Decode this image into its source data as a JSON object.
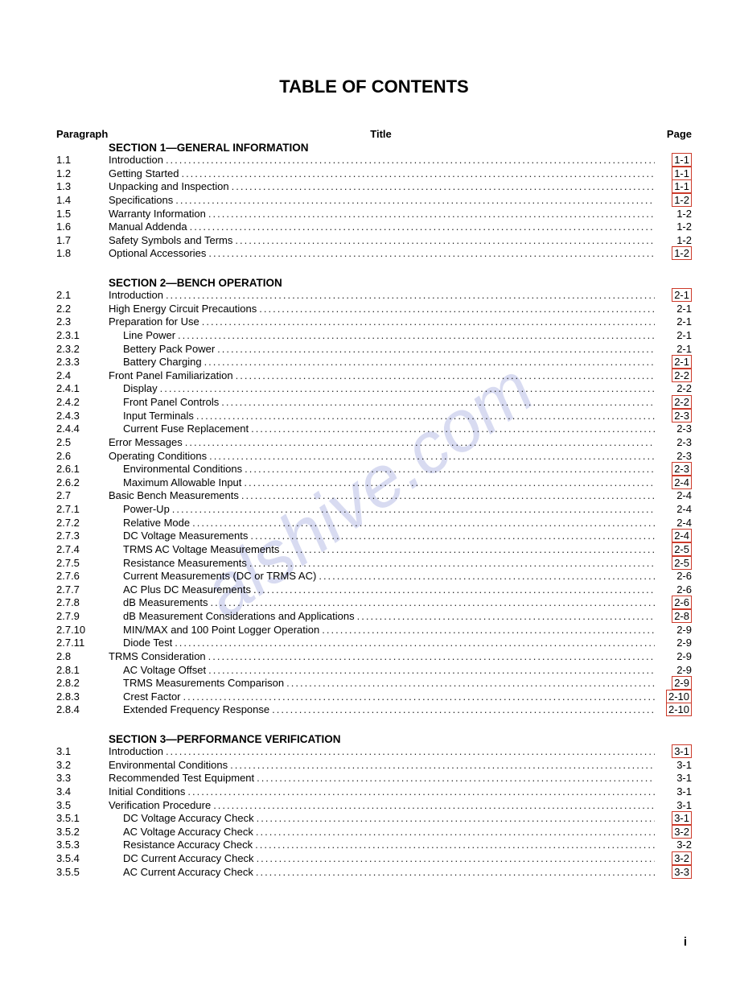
{
  "document_title": "TABLE OF CONTENTS",
  "columns": {
    "paragraph": "Paragraph",
    "title": "Title",
    "page": "Page"
  },
  "watermark": "alshive.com",
  "footer_page": "i",
  "colors": {
    "highlight_border": "#cc3a2a",
    "watermark": "rgba(100,110,200,0.25)",
    "text": "#000000",
    "background": "#ffffff"
  },
  "sections": [
    {
      "heading": "SECTION 1—GENERAL INFORMATION",
      "entries": [
        {
          "para": "1.1",
          "title": "Introduction",
          "page": "1-1",
          "boxed": true,
          "indent": 0
        },
        {
          "para": "1.2",
          "title": "Getting Started",
          "page": "1-1",
          "boxed": true,
          "indent": 0
        },
        {
          "para": "1.3",
          "title": "Unpacking and Inspection",
          "page": "1-1",
          "boxed": true,
          "indent": 0
        },
        {
          "para": "1.4",
          "title": "Specifications",
          "page": "1-2",
          "boxed": true,
          "indent": 0
        },
        {
          "para": "1.5",
          "title": "Warranty Information",
          "page": "1-2",
          "boxed": false,
          "indent": 0
        },
        {
          "para": "1.6",
          "title": "Manual Addenda",
          "page": "1-2",
          "boxed": false,
          "indent": 0
        },
        {
          "para": "1.7",
          "title": "Safety Symbols and Terms",
          "page": "1-2",
          "boxed": false,
          "indent": 0
        },
        {
          "para": "1.8",
          "title": "Optional Accessories",
          "page": "1-2",
          "boxed": true,
          "indent": 0
        }
      ]
    },
    {
      "heading": "SECTION 2—BENCH OPERATION",
      "entries": [
        {
          "para": "2.1",
          "title": "Introduction",
          "page": "2-1",
          "boxed": true,
          "indent": 0
        },
        {
          "para": "2.2",
          "title": "High Energy Circuit Precautions",
          "page": "2-1",
          "boxed": false,
          "indent": 0
        },
        {
          "para": "2.3",
          "title": "Preparation for Use",
          "page": "2-1",
          "boxed": false,
          "indent": 0
        },
        {
          "para": "2.3.1",
          "title": "Line Power",
          "page": "2-1",
          "boxed": false,
          "indent": 1
        },
        {
          "para": "2.3.2",
          "title": "Bettery Pack Power",
          "page": "2-1",
          "boxed": false,
          "indent": 1
        },
        {
          "para": "2.3.3",
          "title": "Battery Charging",
          "page": "2-1",
          "boxed": true,
          "indent": 1
        },
        {
          "para": "2.4",
          "title": "Front Panel Familiarization",
          "page": "2-2",
          "boxed": true,
          "indent": 0
        },
        {
          "para": "2.4.1",
          "title": "Display",
          "page": "2-2",
          "boxed": false,
          "indent": 1
        },
        {
          "para": "2.4.2",
          "title": "Front Panel Controls",
          "page": "2-2",
          "boxed": true,
          "indent": 1
        },
        {
          "para": "2.4.3",
          "title": "Input Terminals",
          "page": "2-3",
          "boxed": true,
          "indent": 1
        },
        {
          "para": "2.4.4",
          "title": "Current Fuse Replacement",
          "page": "2-3",
          "boxed": false,
          "indent": 1
        },
        {
          "para": "2.5",
          "title": "Error Messages",
          "page": "2-3",
          "boxed": false,
          "indent": 0
        },
        {
          "para": "2.6",
          "title": "Operating Conditions",
          "page": "2-3",
          "boxed": false,
          "indent": 0
        },
        {
          "para": "2.6.1",
          "title": "Environmental Conditions",
          "page": "2-3",
          "boxed": true,
          "indent": 1
        },
        {
          "para": "2.6.2",
          "title": "Maximum Allowable Input",
          "page": "2-4",
          "boxed": true,
          "indent": 1
        },
        {
          "para": "2.7",
          "title": "Basic Bench Measurements",
          "page": "2-4",
          "boxed": false,
          "indent": 0
        },
        {
          "para": "2.7.1",
          "title": "Power-Up",
          "page": "2-4",
          "boxed": false,
          "indent": 1
        },
        {
          "para": "2.7.2",
          "title": "Relative Mode",
          "page": "2-4",
          "boxed": false,
          "indent": 1
        },
        {
          "para": "2.7.3",
          "title": "DC Voltage Measurements",
          "page": "2-4",
          "boxed": true,
          "indent": 1
        },
        {
          "para": "2.7.4",
          "title": "TRMS AC Voltage Measurements",
          "page": "2-5",
          "boxed": true,
          "indent": 1
        },
        {
          "para": "2.7.5",
          "title": "Resistance Measurements",
          "page": "2-5",
          "boxed": true,
          "indent": 1
        },
        {
          "para": "2.7.6",
          "title": "Current Measurements (DC or TRMS AC)",
          "page": "2-6",
          "boxed": false,
          "indent": 1
        },
        {
          "para": "2.7.7",
          "title": "AC Plus DC Measurements",
          "page": "2-6",
          "boxed": false,
          "indent": 1
        },
        {
          "para": "2.7.8",
          "title": "dB Measurements",
          "page": "2-6",
          "boxed": true,
          "indent": 1
        },
        {
          "para": "2.7.9",
          "title": "dB Measurement Considerations and Applications",
          "page": "2-8",
          "boxed": true,
          "indent": 1
        },
        {
          "para": "2.7.10",
          "title": "MIN/MAX and 100 Point Logger Operation",
          "page": "2-9",
          "boxed": false,
          "indent": 1
        },
        {
          "para": "2.7.11",
          "title": "Diode Test",
          "page": "2-9",
          "boxed": false,
          "indent": 1
        },
        {
          "para": "2.8",
          "title": "TRMS Consideration",
          "page": "2-9",
          "boxed": false,
          "indent": 0
        },
        {
          "para": "2.8.1",
          "title": "AC Voltage Offset",
          "page": "2-9",
          "boxed": false,
          "indent": 1
        },
        {
          "para": "2.8.2",
          "title": "TRMS Measurements Comparison",
          "page": "2-9",
          "boxed": true,
          "indent": 1
        },
        {
          "para": "2.8.3",
          "title": "Crest Factor",
          "page": "2-10",
          "boxed": true,
          "indent": 1
        },
        {
          "para": "2.8.4",
          "title": "Extended Frequency Response",
          "page": "2-10",
          "boxed": true,
          "indent": 1
        }
      ]
    },
    {
      "heading": "SECTION 3—PERFORMANCE VERIFICATION",
      "entries": [
        {
          "para": "3.1",
          "title": "Introduction",
          "page": "3-1",
          "boxed": true,
          "indent": 0
        },
        {
          "para": "3.2",
          "title": "Environmental Conditions",
          "page": "3-1",
          "boxed": false,
          "indent": 0
        },
        {
          "para": "3.3",
          "title": "Recommended Test Equipment",
          "page": "3-1",
          "boxed": false,
          "indent": 0
        },
        {
          "para": "3.4",
          "title": "Initial Conditions",
          "page": "3-1",
          "boxed": false,
          "indent": 0
        },
        {
          "para": "3.5",
          "title": "Verification Procedure",
          "page": "3-1",
          "boxed": false,
          "indent": 0
        },
        {
          "para": "3.5.1",
          "title": "DC Voltage Accuracy Check",
          "page": "3-1",
          "boxed": true,
          "indent": 1
        },
        {
          "para": "3.5.2",
          "title": "AC Voltage Accuracy Check",
          "page": "3-2",
          "boxed": true,
          "indent": 1
        },
        {
          "para": "3.5.3",
          "title": "Resistance Accuracy Check",
          "page": "3-2",
          "boxed": false,
          "indent": 1
        },
        {
          "para": "3.5.4",
          "title": "DC Current Accuracy Check",
          "page": "3-2",
          "boxed": true,
          "indent": 1
        },
        {
          "para": "3.5.5",
          "title": "AC Current Accuracy Check",
          "page": "3-3",
          "boxed": true,
          "indent": 1
        }
      ]
    }
  ]
}
